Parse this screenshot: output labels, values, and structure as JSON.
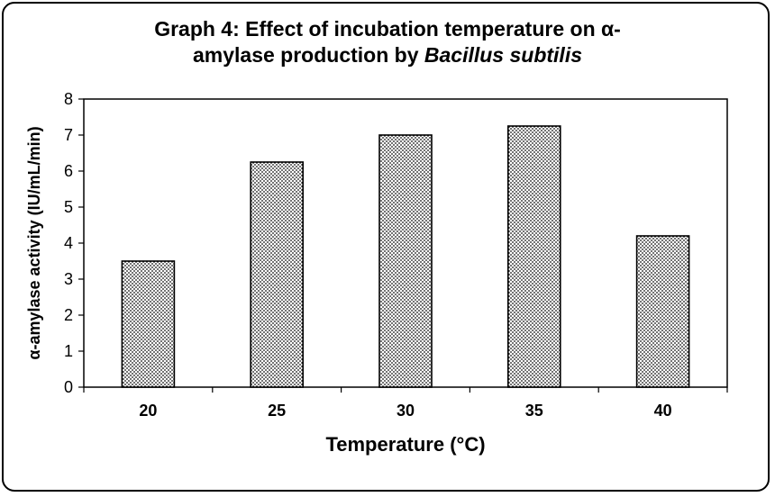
{
  "chart_data": {
    "type": "bar",
    "title_line1": "Graph 4: Effect  of  incubation temperature on α-",
    "title_line2_prefix": "amylase production by ",
    "title_line2_italic": "Bacillus subtilis",
    "categories": [
      "20",
      "25",
      "30",
      "35",
      "40"
    ],
    "values": [
      3.5,
      6.25,
      7.0,
      7.25,
      4.2
    ],
    "xlabel": "Temperature (°C)",
    "ylabel": "α-amylase activity (IU/mL/min)",
    "ylim": [
      0,
      8
    ],
    "yticks": [
      "0",
      "1",
      "2",
      "3",
      "4",
      "5",
      "6",
      "7",
      "8"
    ],
    "grid": false,
    "bar_pattern": "dotted"
  }
}
